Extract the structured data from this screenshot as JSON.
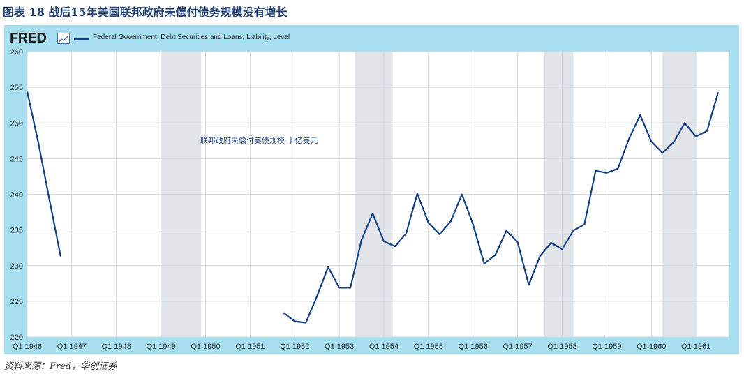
{
  "figure": {
    "title": "图表 18 战后15年美国联邦政府未偿付债务规模没有增长",
    "source": "资料来源：Fred，华创证券"
  },
  "header": {
    "logo_text": "FRED",
    "logo_icon": "line-chart-icon",
    "legend_label": "Federal Government; Debt Securities and Loans; Liability, Level"
  },
  "colors": {
    "line": "#123f86",
    "panel": "#a8dff0",
    "recession": "#e1e5ea"
  },
  "chart_data": {
    "type": "line",
    "title": "",
    "annotation": "联邦政府未偿付美债规模 十亿美元",
    "xlabel": "",
    "ylabel": "",
    "ylim": [
      220,
      260
    ],
    "yticks": [
      220,
      225,
      230,
      235,
      240,
      245,
      250,
      255,
      260
    ],
    "xlim": [
      1946.0,
      1961.75
    ],
    "xticks": [
      {
        "value": 1946,
        "label": "Q1 1946"
      },
      {
        "value": 1947,
        "label": "Q1 1947"
      },
      {
        "value": 1948,
        "label": "Q1 1948"
      },
      {
        "value": 1949,
        "label": "Q1 1949"
      },
      {
        "value": 1950,
        "label": "Q1 1950"
      },
      {
        "value": 1951,
        "label": "Q1 1951"
      },
      {
        "value": 1952,
        "label": "Q1 1952"
      },
      {
        "value": 1953,
        "label": "Q1 1953"
      },
      {
        "value": 1954,
        "label": "Q1 1954"
      },
      {
        "value": 1955,
        "label": "Q1 1955"
      },
      {
        "value": 1956,
        "label": "Q1 1956"
      },
      {
        "value": 1957,
        "label": "Q1 1957"
      },
      {
        "value": 1958,
        "label": "Q1 1958"
      },
      {
        "value": 1959,
        "label": "Q1 1959"
      },
      {
        "value": 1960,
        "label": "Q1 1960"
      },
      {
        "value": 1961,
        "label": "Q1 1961"
      }
    ],
    "recessions": [
      [
        1949.0,
        1949.9
      ],
      [
        1953.35,
        1954.2
      ],
      [
        1957.6,
        1958.25
      ],
      [
        1960.25,
        1961.0
      ]
    ],
    "grid": true,
    "legend": "top-left",
    "series": [
      {
        "name": "Federal Government; Debt Securities and Loans; Liability, Level",
        "segments": [
          [
            {
              "x": 1946.0,
              "y": 254.4
            },
            {
              "x": 1946.25,
              "y": 247.2
            },
            {
              "x": 1946.5,
              "y": 239.2
            },
            {
              "x": 1946.75,
              "y": 231.3
            }
          ],
          [
            {
              "x": 1951.75,
              "y": 223.4
            },
            {
              "x": 1952.0,
              "y": 222.2
            },
            {
              "x": 1952.25,
              "y": 222.0
            },
            {
              "x": 1952.5,
              "y": 225.7
            },
            {
              "x": 1952.75,
              "y": 229.8
            },
            {
              "x": 1953.0,
              "y": 226.9
            },
            {
              "x": 1953.25,
              "y": 226.9
            },
            {
              "x": 1953.5,
              "y": 233.6
            },
            {
              "x": 1953.75,
              "y": 237.3
            },
            {
              "x": 1954.0,
              "y": 233.4
            },
            {
              "x": 1954.25,
              "y": 232.7
            },
            {
              "x": 1954.5,
              "y": 234.5
            },
            {
              "x": 1954.75,
              "y": 240.1
            },
            {
              "x": 1955.0,
              "y": 236.0
            },
            {
              "x": 1955.25,
              "y": 234.4
            },
            {
              "x": 1955.5,
              "y": 236.2
            },
            {
              "x": 1955.75,
              "y": 240.0
            },
            {
              "x": 1956.0,
              "y": 235.8
            },
            {
              "x": 1956.25,
              "y": 230.3
            },
            {
              "x": 1956.5,
              "y": 231.5
            },
            {
              "x": 1956.75,
              "y": 234.9
            },
            {
              "x": 1957.0,
              "y": 233.3
            },
            {
              "x": 1957.25,
              "y": 227.3
            },
            {
              "x": 1957.5,
              "y": 231.3
            },
            {
              "x": 1957.75,
              "y": 233.2
            },
            {
              "x": 1958.0,
              "y": 232.3
            },
            {
              "x": 1958.25,
              "y": 234.9
            },
            {
              "x": 1958.5,
              "y": 235.8
            },
            {
              "x": 1958.75,
              "y": 243.3
            },
            {
              "x": 1959.0,
              "y": 243.0
            },
            {
              "x": 1959.25,
              "y": 243.6
            },
            {
              "x": 1959.5,
              "y": 247.8
            },
            {
              "x": 1959.75,
              "y": 251.1
            },
            {
              "x": 1960.0,
              "y": 247.4
            },
            {
              "x": 1960.25,
              "y": 245.8
            },
            {
              "x": 1960.5,
              "y": 247.3
            },
            {
              "x": 1960.75,
              "y": 250.0
            },
            {
              "x": 1961.0,
              "y": 248.1
            },
            {
              "x": 1961.25,
              "y": 248.9
            },
            {
              "x": 1961.5,
              "y": 254.3
            }
          ]
        ]
      }
    ]
  }
}
